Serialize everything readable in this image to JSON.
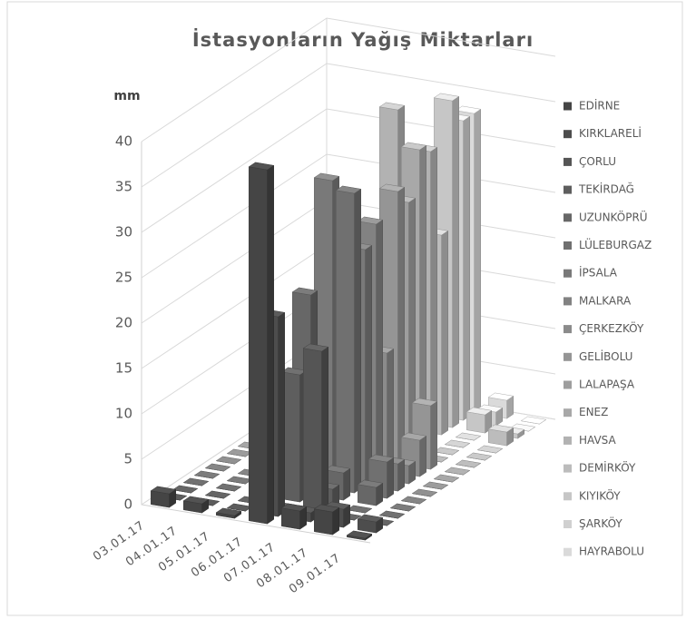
{
  "chart_data": {
    "type": "bar3d",
    "title": "İstasyonların Yağış Miktarları",
    "y_label": "mm",
    "categories": [
      "03.01.17",
      "04.01.17",
      "05.01.17",
      "06.01.17",
      "07.01.17",
      "08.01.17",
      "09.01.17"
    ],
    "ylim": [
      0,
      40
    ],
    "yticks": [
      0,
      5,
      10,
      15,
      20,
      25,
      30,
      35,
      40
    ],
    "grid": true,
    "legend": "right",
    "series": [
      {
        "name": "EDİRNE",
        "color": "#454545",
        "values": [
          1.5,
          1,
          0.3,
          39,
          2,
          2.5,
          0.2
        ]
      },
      {
        "name": "KIRKLARELİ",
        "color": "#4d4d4d",
        "values": [
          0,
          0,
          0,
          22,
          1,
          2,
          1.2
        ]
      },
      {
        "name": "ÇORLU",
        "color": "#555555",
        "values": [
          0,
          0,
          0,
          0,
          18,
          0,
          0
        ]
      },
      {
        "name": "TEKİRDAĞ",
        "color": "#5e5e5e",
        "values": [
          0,
          0,
          0,
          14,
          2,
          0,
          0
        ]
      },
      {
        "name": "UZUNKÖPRÜ",
        "color": "#676767",
        "values": [
          0,
          0,
          0,
          22,
          3,
          2,
          0
        ]
      },
      {
        "name": "LÜLEBURGAZ",
        "color": "#707070",
        "values": [
          0,
          0,
          0,
          11,
          33,
          4,
          0
        ]
      },
      {
        "name": "İPSALA",
        "color": "#797979",
        "values": [
          0,
          0,
          0,
          33,
          26,
          3,
          0
        ]
      },
      {
        "name": "MALKARA",
        "color": "#828282",
        "values": [
          0,
          0,
          0,
          14,
          28,
          2,
          0
        ]
      },
      {
        "name": "ÇERKEZKÖY",
        "color": "#8b8b8b",
        "values": [
          0,
          0,
          0,
          0,
          13,
          4,
          0
        ]
      },
      {
        "name": "GELİBOLU",
        "color": "#959595",
        "values": [
          0,
          0,
          0,
          5,
          30,
          7,
          0
        ]
      },
      {
        "name": "LALAPAŞA",
        "color": "#9e9e9e",
        "values": [
          0,
          0,
          0,
          3,
          28,
          0,
          0
        ]
      },
      {
        "name": "ENEZ",
        "color": "#a8a8a8",
        "values": [
          0,
          0,
          0,
          0,
          33,
          0,
          0
        ]
      },
      {
        "name": "HAVSA",
        "color": "#b2b2b2",
        "values": [
          0,
          0,
          0,
          36,
          32,
          0,
          0
        ]
      },
      {
        "name": "DEMİRKÖY",
        "color": "#bcbcbc",
        "values": [
          0,
          0,
          0,
          0,
          22,
          0,
          1.5
        ]
      },
      {
        "name": "KIYIKÖY",
        "color": "#c6c6c6",
        "values": [
          0,
          0,
          0,
          0,
          36,
          2,
          0.5
        ]
      },
      {
        "name": "ŞARKÖY",
        "color": "#d0d0d0",
        "values": [
          0,
          0,
          0,
          0,
          33,
          1.5,
          0
        ]
      },
      {
        "name": "HAYRABOLU",
        "color": "#dadada",
        "values": [
          0,
          0,
          0,
          0,
          33,
          2,
          0
        ]
      }
    ]
  }
}
